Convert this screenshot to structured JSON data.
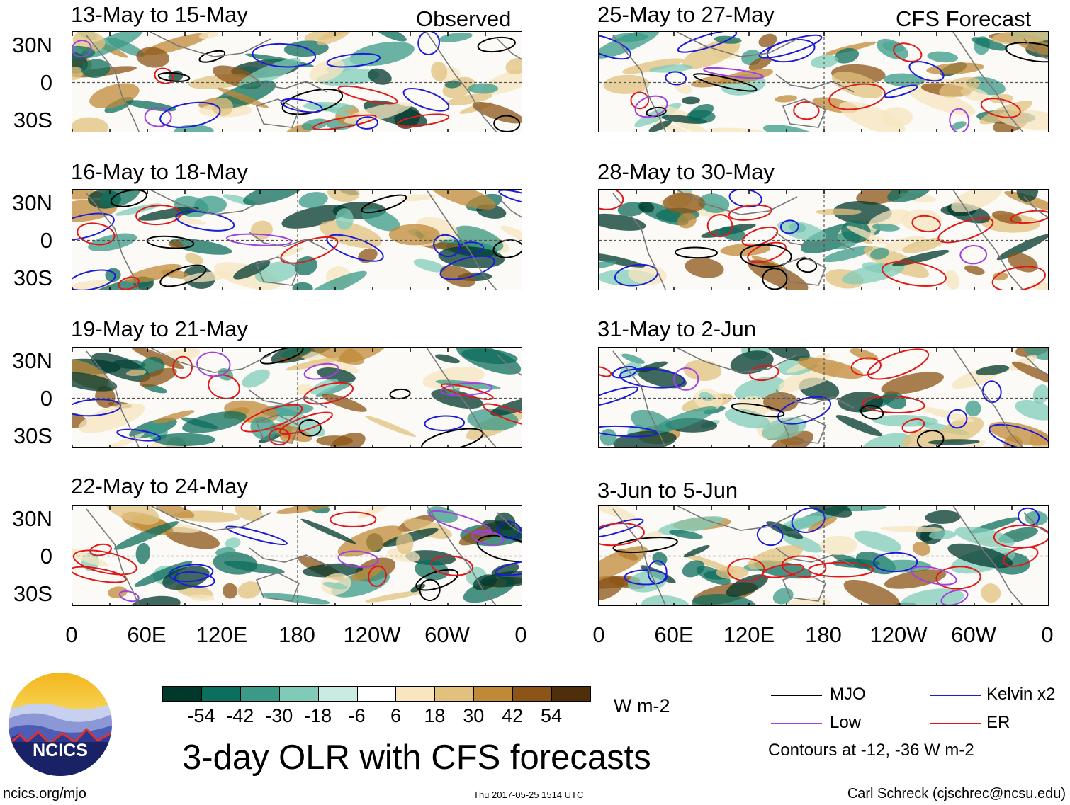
{
  "chart_data": {
    "type": "heatmap",
    "title": "3-day OLR with CFS forecasts",
    "units": "W m-2",
    "observed_label": "Observed",
    "forecast_label": "CFS Forecast",
    "panels_observed": [
      "13-May to 15-May",
      "16-May to 18-May",
      "19-May to 21-May",
      "22-May to 24-May"
    ],
    "panels_forecast": [
      "25-May to 27-May",
      "28-May to 30-May",
      "31-May to 2-Jun",
      "3-Jun to 5-Jun"
    ],
    "y_ticks": [
      "30N",
      "0",
      "30S"
    ],
    "x_ticks": [
      "0",
      "60E",
      "120E",
      "180",
      "120W",
      "60W",
      "0"
    ],
    "colorbar": {
      "labels": [
        "-54",
        "-42",
        "-30",
        "-18",
        "-6",
        "6",
        "18",
        "30",
        "42",
        "54"
      ],
      "colors": [
        "#00382c",
        "#0c6e5c",
        "#3a9a87",
        "#80cbb8",
        "#c9ebe2",
        "#ffffff",
        "#f7e6bf",
        "#e2c17f",
        "#c08938",
        "#8c5416",
        "#4f2f0a"
      ]
    },
    "legend": [
      {
        "label": "MJO",
        "color": "#000000"
      },
      {
        "label": "Kelvin x2",
        "color": "#1c1cd8"
      },
      {
        "label": "Low",
        "color": "#a040e0"
      },
      {
        "label": "ER",
        "color": "#e01818"
      }
    ],
    "contours_note": "Contours at -12, -36 W m-2"
  },
  "org": {
    "logo_text": "NCICS",
    "url": "ncics.org/mjo",
    "timestamp": "Thu 2017-05-25 1514 UTC",
    "author": "Carl Schreck (cjschrec@ncsu.edu)"
  }
}
